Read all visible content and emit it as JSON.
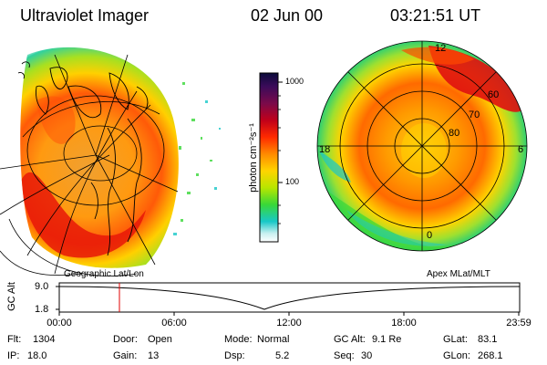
{
  "header": {
    "title": "Ultraviolet Imager",
    "date": "02 Jun 00",
    "time": "03:21:51 UT"
  },
  "colorbar": {
    "units_label": "photon cm⁻²s⁻¹",
    "tick_1000": "1000",
    "tick_100": "100",
    "colors": [
      "#0b0b3a",
      "#3b0b5a",
      "#7a0a4a",
      "#c0001a",
      "#ff2a00",
      "#ff8a00",
      "#ffd400",
      "#b8e600",
      "#38d838",
      "#18c8c8",
      "#c8f0f0",
      "#ffffff"
    ]
  },
  "left_panel": {
    "title": "Geographic Lat/Lon"
  },
  "right_panel": {
    "title": "Apex MLat/MLT",
    "mlt_12": "12",
    "mlt_18": "18",
    "mlt_6": "6",
    "mlt_0": "0",
    "lat_60": "60",
    "lat_70": "70",
    "lat_80": "80"
  },
  "timeline": {
    "ylabel": "GC Alt",
    "ytick_top": "9.0",
    "ytick_bottom": "1.8",
    "ticks": [
      "00:00",
      "06:00",
      "12:00",
      "18:00",
      "23:59"
    ]
  },
  "status": {
    "flt_label": "Flt:",
    "flt_value": "1304",
    "ip_label": "IP:",
    "ip_value": "18.0",
    "door_label": "Door:",
    "door_value": "Open",
    "gain_label": "Gain:",
    "gain_value": "13",
    "mode_label": "Mode:",
    "mode_value": "Normal",
    "dsp_label": "Dsp:",
    "dsp_value": "5.2",
    "gcalt_label": "GC Alt:",
    "gcalt_value": "9.1 Re",
    "seq_label": "Seq:",
    "seq_value": "30",
    "glat_label": "GLat:",
    "glat_value": "83.1",
    "glon_label": "GLon:",
    "glon_value": "268.1"
  }
}
